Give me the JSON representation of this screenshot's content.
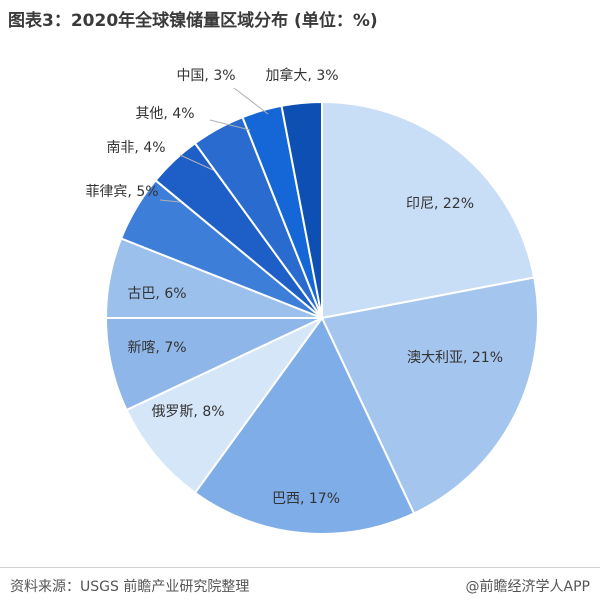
{
  "title": "图表3：2020年全球镍储量区域分布 (单位：%)",
  "chart_data": {
    "type": "pie",
    "start_angle_deg": 0,
    "direction": "clockwise",
    "slices": [
      {
        "name": "印尼",
        "value": 22,
        "label": "印尼, 22%",
        "color": "#c8ddf6"
      },
      {
        "name": "澳大利亚",
        "value": 21,
        "label": "澳大利亚, 21%",
        "color": "#a4c5ee"
      },
      {
        "name": "巴西",
        "value": 17,
        "label": "巴西, 17%",
        "color": "#7fade8"
      },
      {
        "name": "俄罗斯",
        "value": 8,
        "label": "俄罗斯, 8%",
        "color": "#d6e6f9"
      },
      {
        "name": "新喀",
        "value": 7,
        "label": "新喀, 7%",
        "color": "#8fb6e9"
      },
      {
        "name": "古巴",
        "value": 6,
        "label": "古巴, 6%",
        "color": "#9cc0ec"
      },
      {
        "name": "菲律宾",
        "value": 5,
        "label": "菲律宾, 5%",
        "color": "#3d7ed9"
      },
      {
        "name": "南非",
        "value": 4,
        "label": "南非, 4%",
        "color": "#1d5fc7"
      },
      {
        "name": "其他",
        "value": 4,
        "label": "其他, 4%",
        "color": "#2a6bd0"
      },
      {
        "name": "中国",
        "value": 3,
        "label": "中国, 3%",
        "color": "#1566d6"
      },
      {
        "name": "加拿大",
        "value": 3,
        "label": "加拿大, 3%",
        "color": "#0e4fb3"
      }
    ]
  },
  "footer": {
    "source": "资料来源：USGS 前瞻产业研究院整理",
    "brand": "@前瞻经济学人APP"
  }
}
